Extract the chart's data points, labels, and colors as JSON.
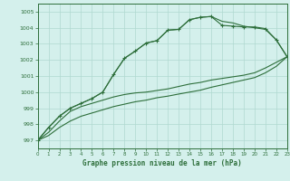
{
  "title": "Graphe pression niveau de la mer (hPa)",
  "bg_color": "#d4f0ec",
  "grid_color": "#b0d8d0",
  "line_color": "#2d6e3a",
  "xlim": [
    0,
    23
  ],
  "ylim": [
    996.5,
    1005.5
  ],
  "yticks": [
    997,
    998,
    999,
    1000,
    1001,
    1002,
    1003,
    1004,
    1005
  ],
  "xticks": [
    0,
    1,
    2,
    3,
    4,
    5,
    6,
    7,
    8,
    9,
    10,
    11,
    12,
    13,
    14,
    15,
    16,
    17,
    18,
    19,
    20,
    21,
    22,
    23
  ],
  "line_marked": [
    997.0,
    997.8,
    998.5,
    999.0,
    999.3,
    999.6,
    1000.0,
    1001.1,
    1002.1,
    1002.55,
    1003.05,
    1003.2,
    1003.85,
    1003.9,
    1004.5,
    1004.65,
    1004.7,
    1004.15,
    1004.1,
    1004.05,
    1004.05,
    1003.95,
    1003.25,
    1002.2
  ],
  "line_top": [
    997.0,
    997.8,
    998.5,
    999.0,
    999.3,
    999.6,
    1000.0,
    1001.1,
    1002.1,
    1002.55,
    1003.05,
    1003.2,
    1003.85,
    1003.9,
    1004.5,
    1004.65,
    1004.7,
    1004.4,
    1004.3,
    1004.1,
    1004.0,
    1003.9,
    1003.25,
    1002.2
  ],
  "line_mid": [
    997.0,
    997.5,
    998.2,
    998.8,
    999.1,
    999.3,
    999.5,
    999.7,
    999.85,
    999.95,
    1000.0,
    1000.1,
    1000.2,
    1000.35,
    1000.5,
    1000.6,
    1000.75,
    1000.85,
    1000.95,
    1001.05,
    1001.2,
    1001.5,
    1001.85,
    1002.2
  ],
  "line_low": [
    997.0,
    997.3,
    997.8,
    998.2,
    998.5,
    998.7,
    998.9,
    999.1,
    999.25,
    999.4,
    999.5,
    999.65,
    999.75,
    999.88,
    1000.0,
    1000.12,
    1000.3,
    1000.45,
    1000.6,
    1000.75,
    1000.9,
    1001.2,
    1001.6,
    1002.2
  ]
}
